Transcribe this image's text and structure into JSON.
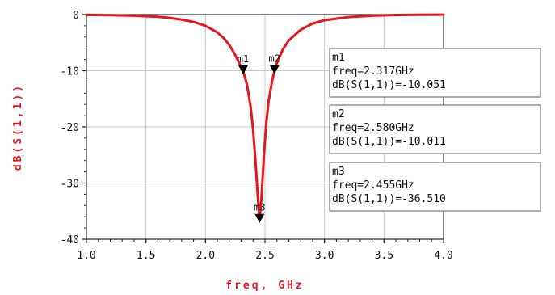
{
  "chart_data": {
    "type": "line",
    "xlabel": "freq, GHz",
    "ylabel": "dB(S(1,1))",
    "xlim": [
      1.0,
      4.0
    ],
    "ylim": [
      -40,
      0
    ],
    "x_ticks": [
      1.0,
      1.5,
      2.0,
      2.5,
      3.0,
      3.5,
      4.0
    ],
    "x_tick_labels": [
      "1.0",
      "1.5",
      "2.0",
      "2.5",
      "3.0",
      "3.5",
      "4.0"
    ],
    "y_ticks": [
      0,
      -10,
      -20,
      -30,
      -40
    ],
    "y_tick_labels": [
      "0",
      "-10",
      "-20",
      "-30",
      "-40"
    ],
    "grid": true,
    "series": [
      {
        "color": "#e8141e",
        "x": [
          1.0,
          1.2,
          1.4,
          1.6,
          1.7,
          1.8,
          1.9,
          2.0,
          2.1,
          2.15,
          2.2,
          2.25,
          2.3,
          2.317,
          2.35,
          2.38,
          2.4,
          2.42,
          2.44,
          2.455,
          2.47,
          2.49,
          2.51,
          2.53,
          2.56,
          2.58,
          2.6,
          2.65,
          2.7,
          2.8,
          2.9,
          3.0,
          3.2,
          3.4,
          3.6,
          3.8,
          4.0
        ],
        "y": [
          -0.05,
          -0.1,
          -0.2,
          -0.4,
          -0.6,
          -0.9,
          -1.3,
          -2.0,
          -3.2,
          -4.1,
          -5.4,
          -7.2,
          -9.4,
          -10.051,
          -12.6,
          -16.5,
          -20.5,
          -26.0,
          -32.5,
          -36.51,
          -32.8,
          -25.5,
          -19.5,
          -15.5,
          -11.8,
          -10.011,
          -8.6,
          -6.2,
          -4.6,
          -2.7,
          -1.6,
          -1.0,
          -0.45,
          -0.2,
          -0.08,
          -0.04,
          -0.02
        ]
      }
    ],
    "markers": [
      {
        "name": "m1",
        "freq": 2.317,
        "value": -10.051
      },
      {
        "name": "m2",
        "freq": 2.58,
        "value": -10.011
      },
      {
        "name": "m3",
        "freq": 2.455,
        "value": -36.51
      }
    ],
    "readouts": [
      {
        "name": "m1",
        "freq_text": "freq=2.317GHz",
        "value_text": "dB(S(1,1))=-10.051"
      },
      {
        "name": "m2",
        "freq_text": "freq=2.580GHz",
        "value_text": "dB(S(1,1))=-10.011"
      },
      {
        "name": "m3",
        "freq_text": "freq=2.455GHz",
        "value_text": "dB(S(1,1))=-36.510"
      }
    ],
    "colors": {
      "trace": "#e8141e",
      "ylabel": "#e8141e",
      "xlabel": "#e8141e",
      "grid": "#c8c8c8",
      "axis": "#222222"
    }
  }
}
